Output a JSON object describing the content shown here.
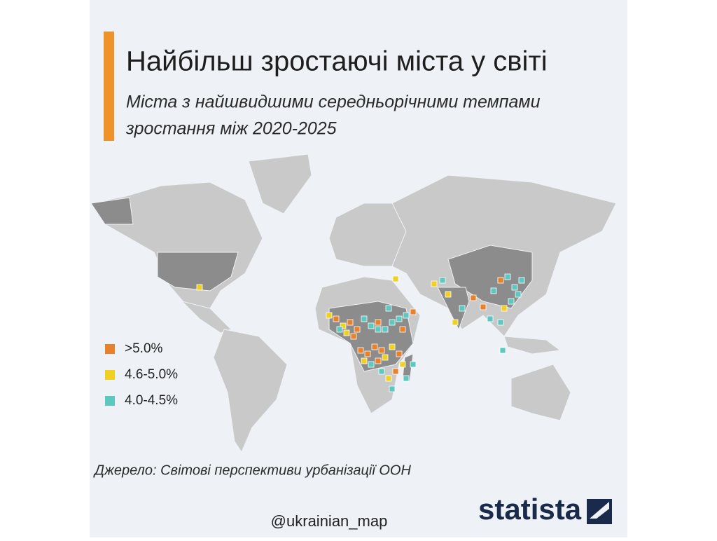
{
  "header": {
    "title": "Найбільш зростаючі міста у світі",
    "subtitle_lines": [
      "Міста з найшвидшими середньорічними темпами",
      "зростання між 2020-2025"
    ]
  },
  "legend": [
    {
      "label": ">5.0%",
      "color": "#e8822a"
    },
    {
      "label": "4.6-5.0%",
      "color": "#f0d020"
    },
    {
      "label": "4.0-4.5%",
      "color": "#5cc8c0"
    }
  ],
  "source": "Джерело: Світові перспективи урбанізації ООН",
  "watermark": "@ukrainian_map",
  "logo": "statista"
}
